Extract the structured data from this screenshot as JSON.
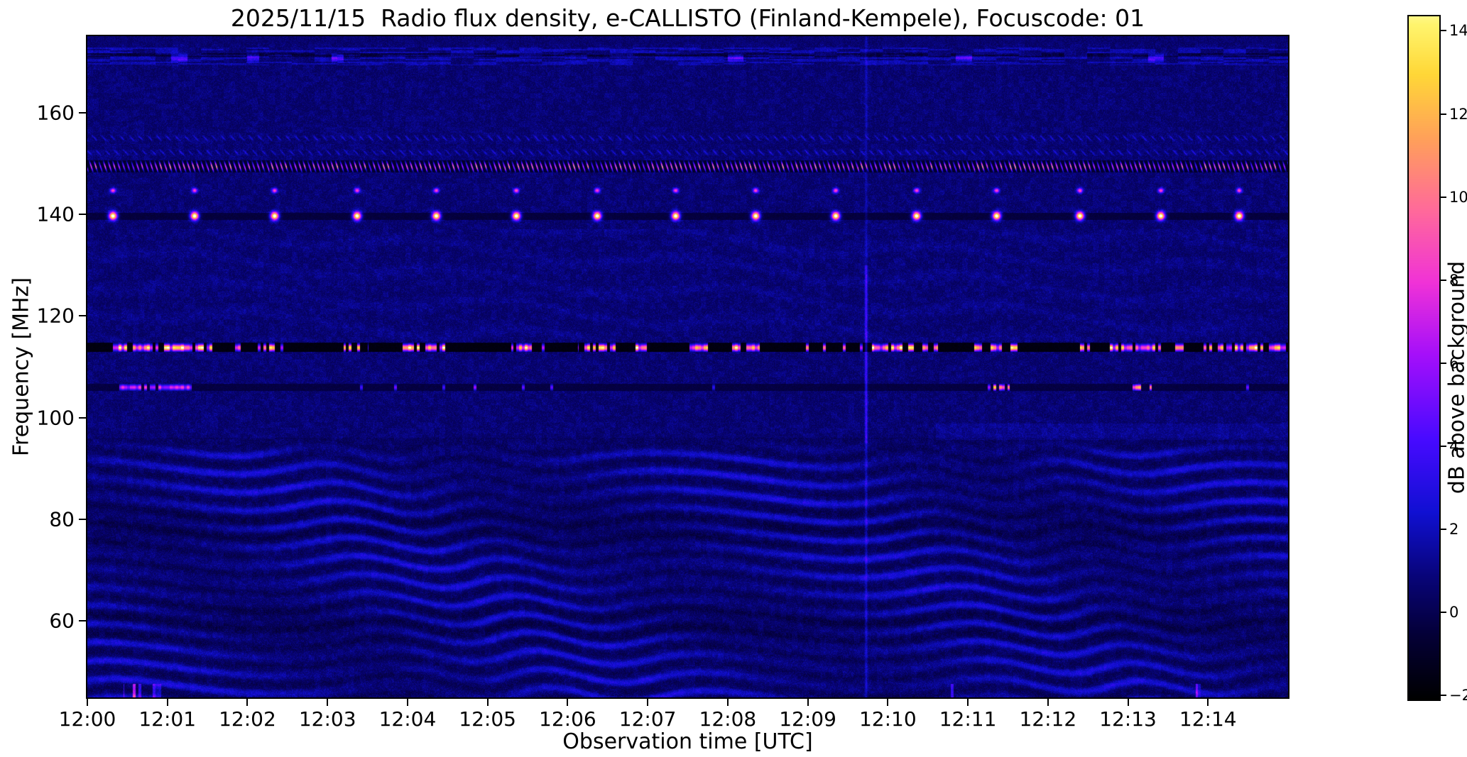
{
  "figure": {
    "title": "2025/11/15  Radio flux density, e-CALLISTO (Finland-Kempele), Focuscode: 01"
  },
  "chart_data": {
    "type": "heatmap",
    "subtype": "radio-spectrogram",
    "title": "2025/11/15  Radio flux density, e-CALLISTO (Finland-Kempele), Focuscode: 01",
    "xlabel": "Observation time [UTC]",
    "ylabel": "Frequency [MHz]",
    "x_ticks": [
      "12:00",
      "12:01",
      "12:02",
      "12:03",
      "12:04",
      "12:05",
      "12:06",
      "12:07",
      "12:08",
      "12:09",
      "12:10",
      "12:11",
      "12:12",
      "12:13",
      "12:14"
    ],
    "x_range_min": [
      0,
      15
    ],
    "x_start_utc": "12:00",
    "y_ticks": [
      160,
      140,
      120,
      100,
      80,
      60
    ],
    "y_range_mhz": [
      45,
      175
    ],
    "colorbar": {
      "label": "dB above background",
      "tick_values": [
        14,
        12,
        10,
        8,
        6,
        4,
        2,
        0,
        -2
      ],
      "tick_labels": [
        "14",
        "12",
        "10",
        "8",
        "6",
        "4",
        "2",
        "0",
        "−2"
      ],
      "display_range": [
        -2.1,
        14.35
      ],
      "colormap": "gnuplot2-like: black - blue - violet - magenta - orange - yellow - white"
    },
    "background_db_range": [
      0,
      1.5
    ],
    "features": {
      "bursts139": {
        "name": "bright minute-interval beacon bursts",
        "freq_mhz": 139.65,
        "peak_db": 15,
        "times_min": [
          0.32,
          1.34,
          2.34,
          3.37,
          4.36,
          5.36,
          6.37,
          7.35,
          8.35,
          9.35,
          10.36,
          11.36,
          12.4,
          13.41,
          14.39
        ]
      },
      "dots144": {
        "name": "companion dots above each burst",
        "freq_mhz": 144.65,
        "peak_db": 8
      },
      "dark_channel139": {
        "freq_range_mhz": [
          138.9,
          140.3
        ],
        "level_db": -1
      },
      "band113": {
        "name": "saturated intermittent RFI channel",
        "freq_range_mhz": [
          112.9,
          114.7
        ],
        "level_db": -2,
        "peak_db": 15,
        "segments_min": [
          [
            0.28,
            1.57
          ],
          [
            1.79,
            1.99
          ],
          [
            2.13,
            2.46
          ],
          [
            3.2,
            3.5
          ],
          [
            3.94,
            4.47
          ],
          [
            5.3,
            5.55
          ],
          [
            6.13,
            6.6
          ],
          [
            6.78,
            7.13
          ],
          [
            7.5,
            7.75
          ],
          [
            8.05,
            8.4
          ],
          [
            9.8,
            10.63
          ],
          [
            11.08,
            11.62
          ],
          [
            12.4,
            13.7
          ],
          [
            13.94,
            14.97
          ]
        ]
      },
      "band106": {
        "name": "RFI channel with sporadic saturated spots",
        "freq_range_mhz": [
          105.2,
          106.7
        ],
        "level_db": -0.5,
        "spots_min": [
          [
            0.4,
            1.3,
            9
          ],
          [
            11.28,
            11.52,
            15
          ],
          [
            13.02,
            13.3,
            15
          ]
        ]
      },
      "comb149": {
        "name": "dense periodic RFI comb",
        "freq_range_mhz": [
          148.2,
          150.6
        ],
        "period_min": 0.058,
        "peak_db": 13
      },
      "dotted_rows": {
        "freq_range_mhz": [
          151.4,
          155.6
        ],
        "peak_db": 2.5
      },
      "topband171": {
        "name": "streaky band near top",
        "freq_range_mhz": [
          169.3,
          172.8
        ],
        "dashes_min": [
          [
            1.05,
            1.25
          ],
          [
            2.0,
            2.15
          ],
          [
            3.05,
            3.2
          ],
          [
            8.0,
            8.2
          ],
          [
            10.85,
            11.05
          ],
          [
            13.25,
            13.45
          ]
        ]
      },
      "ripples": {
        "name": "ionospheric interference fringes",
        "freq_range_mhz": [
          45,
          96
        ],
        "peak_db": 3.5,
        "description": "wavy drifting diagonal fringes filling the lower metric band"
      },
      "vstreak": {
        "name": "faint broadband vertical streak",
        "time_min": 9.73,
        "peak_db": 4
      },
      "right_band97": {
        "freq_range_mhz": [
          95.6,
          98.8
        ],
        "time_from_min": 10.6,
        "extra_db": 0.5
      },
      "bottom_spots": {
        "freq_mhz": 46.5,
        "spots_min": [
          [
            0.45,
            1.0
          ],
          [
            10.75,
            10.95
          ],
          [
            13.85,
            14.05
          ]
        ],
        "peak_db": 6
      }
    }
  }
}
